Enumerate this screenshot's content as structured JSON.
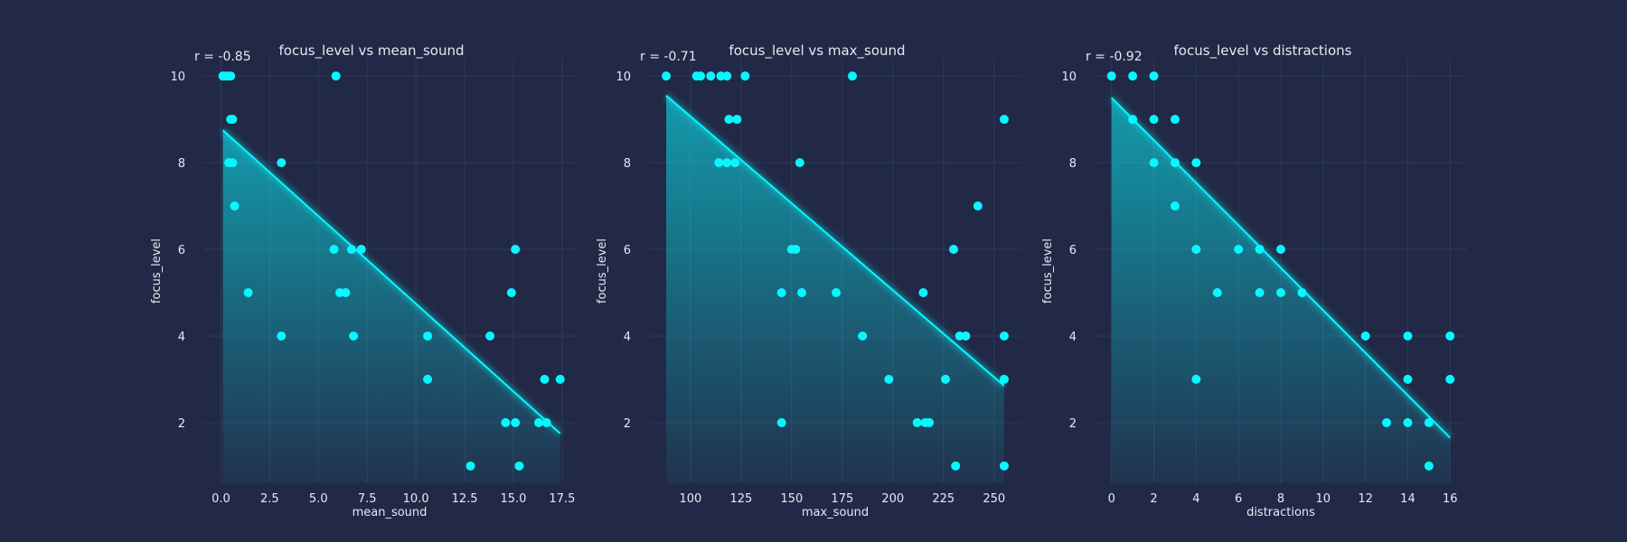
{
  "colors": {
    "background": "#212946",
    "point": "#08f7fe",
    "line": "#08f7fe",
    "grid": "#2d3a5c",
    "text": "#e6e9f2"
  },
  "chart_data": [
    {
      "type": "scatter",
      "title": "focus_level vs mean_sound",
      "annotation": "r = -0.85",
      "xlabel": "mean_sound",
      "ylabel": "focus_level",
      "grid": true,
      "xlim": [
        -0.9,
        18.2
      ],
      "ylim": [
        0.6,
        10.4
      ],
      "xticks": [
        0,
        2.5,
        5,
        7.5,
        10,
        12.5,
        15,
        17.5
      ],
      "xticklabels": [
        "0.0",
        "2.5",
        "5.0",
        "7.5",
        "10.0",
        "12.5",
        "15.0",
        "17.5"
      ],
      "yticks": [
        2,
        4,
        6,
        8,
        10
      ],
      "yticklabels": [
        "2",
        "4",
        "6",
        "8",
        "10"
      ],
      "points": [
        {
          "x": 0.1,
          "y": 10
        },
        {
          "x": 0.3,
          "y": 10
        },
        {
          "x": 0.5,
          "y": 10
        },
        {
          "x": 0.5,
          "y": 9
        },
        {
          "x": 0.6,
          "y": 9
        },
        {
          "x": 0.4,
          "y": 8
        },
        {
          "x": 0.6,
          "y": 8
        },
        {
          "x": 0.7,
          "y": 7
        },
        {
          "x": 1.4,
          "y": 5
        },
        {
          "x": 3.1,
          "y": 8
        },
        {
          "x": 3.1,
          "y": 4
        },
        {
          "x": 5.8,
          "y": 6
        },
        {
          "x": 5.9,
          "y": 10
        },
        {
          "x": 6.1,
          "y": 5
        },
        {
          "x": 6.4,
          "y": 5
        },
        {
          "x": 6.7,
          "y": 6
        },
        {
          "x": 6.8,
          "y": 4
        },
        {
          "x": 7.2,
          "y": 6
        },
        {
          "x": 10.6,
          "y": 4
        },
        {
          "x": 10.6,
          "y": 3
        },
        {
          "x": 12.8,
          "y": 1
        },
        {
          "x": 13.8,
          "y": 4
        },
        {
          "x": 14.6,
          "y": 2
        },
        {
          "x": 14.9,
          "y": 5
        },
        {
          "x": 15.1,
          "y": 6
        },
        {
          "x": 15.1,
          "y": 2
        },
        {
          "x": 15.3,
          "y": 1
        },
        {
          "x": 16.3,
          "y": 2
        },
        {
          "x": 16.6,
          "y": 3
        },
        {
          "x": 16.7,
          "y": 2
        },
        {
          "x": 17.4,
          "y": 3
        }
      ],
      "fit": {
        "x": [
          0.1,
          17.4
        ],
        "y": [
          8.75,
          1.75
        ]
      }
    },
    {
      "type": "scatter",
      "title": "focus_level vs max_sound",
      "annotation": "r = -0.71",
      "xlabel": "max_sound",
      "ylabel": "focus_level",
      "grid": true,
      "xlim": [
        79.5,
        263.5
      ],
      "ylim": [
        0.6,
        10.4
      ],
      "xticks": [
        100,
        125,
        150,
        175,
        200,
        225,
        250
      ],
      "xticklabels": [
        "100",
        "125",
        "150",
        "175",
        "200",
        "225",
        "250"
      ],
      "yticks": [
        2,
        4,
        6,
        8,
        10
      ],
      "yticklabels": [
        "2",
        "4",
        "6",
        "8",
        "10"
      ],
      "points": [
        {
          "x": 88,
          "y": 10
        },
        {
          "x": 103,
          "y": 10
        },
        {
          "x": 105,
          "y": 10
        },
        {
          "x": 110,
          "y": 10
        },
        {
          "x": 115,
          "y": 10
        },
        {
          "x": 118,
          "y": 10
        },
        {
          "x": 127,
          "y": 10
        },
        {
          "x": 180,
          "y": 10
        },
        {
          "x": 119,
          "y": 9
        },
        {
          "x": 123,
          "y": 9
        },
        {
          "x": 114,
          "y": 8
        },
        {
          "x": 118,
          "y": 8
        },
        {
          "x": 122,
          "y": 8
        },
        {
          "x": 154,
          "y": 8
        },
        {
          "x": 150,
          "y": 6
        },
        {
          "x": 152,
          "y": 6
        },
        {
          "x": 145,
          "y": 5
        },
        {
          "x": 155,
          "y": 5
        },
        {
          "x": 172,
          "y": 5
        },
        {
          "x": 185,
          "y": 4
        },
        {
          "x": 145,
          "y": 2
        },
        {
          "x": 198,
          "y": 3
        },
        {
          "x": 212,
          "y": 2
        },
        {
          "x": 216,
          "y": 2
        },
        {
          "x": 218,
          "y": 2
        },
        {
          "x": 215,
          "y": 5
        },
        {
          "x": 226,
          "y": 3
        },
        {
          "x": 230,
          "y": 6
        },
        {
          "x": 231,
          "y": 1
        },
        {
          "x": 233,
          "y": 4
        },
        {
          "x": 236,
          "y": 4
        },
        {
          "x": 242,
          "y": 7
        },
        {
          "x": 255,
          "y": 9
        },
        {
          "x": 255,
          "y": 4
        },
        {
          "x": 255,
          "y": 3
        },
        {
          "x": 255,
          "y": 1
        }
      ],
      "fit": {
        "x": [
          88,
          255
        ],
        "y": [
          9.55,
          2.85
        ]
      }
    },
    {
      "type": "scatter",
      "title": "focus_level vs distractions",
      "annotation": "r = -0.92",
      "xlabel": "distractions",
      "ylabel": "focus_level",
      "grid": true,
      "xlim": [
        -0.8,
        16.8
      ],
      "ylim": [
        0.6,
        10.4
      ],
      "xticks": [
        0,
        2,
        4,
        6,
        8,
        10,
        12,
        14,
        16
      ],
      "xticklabels": [
        "0",
        "2",
        "4",
        "6",
        "8",
        "10",
        "12",
        "14",
        "16"
      ],
      "yticks": [
        2,
        4,
        6,
        8,
        10
      ],
      "yticklabels": [
        "2",
        "4",
        "6",
        "8",
        "10"
      ],
      "points": [
        {
          "x": 0,
          "y": 10
        },
        {
          "x": 1,
          "y": 10
        },
        {
          "x": 2,
          "y": 10
        },
        {
          "x": 1,
          "y": 9
        },
        {
          "x": 2,
          "y": 9
        },
        {
          "x": 3,
          "y": 9
        },
        {
          "x": 2,
          "y": 8
        },
        {
          "x": 3,
          "y": 8
        },
        {
          "x": 4,
          "y": 8
        },
        {
          "x": 3,
          "y": 7
        },
        {
          "x": 4,
          "y": 6
        },
        {
          "x": 6,
          "y": 6
        },
        {
          "x": 7,
          "y": 6
        },
        {
          "x": 8,
          "y": 6
        },
        {
          "x": 5,
          "y": 5
        },
        {
          "x": 7,
          "y": 5
        },
        {
          "x": 8,
          "y": 5
        },
        {
          "x": 9,
          "y": 5
        },
        {
          "x": 4,
          "y": 3
        },
        {
          "x": 12,
          "y": 4
        },
        {
          "x": 14,
          "y": 4
        },
        {
          "x": 16,
          "y": 4
        },
        {
          "x": 13,
          "y": 2
        },
        {
          "x": 14,
          "y": 3
        },
        {
          "x": 14,
          "y": 2
        },
        {
          "x": 15,
          "y": 2
        },
        {
          "x": 15,
          "y": 1
        },
        {
          "x": 16,
          "y": 3
        }
      ],
      "fit": {
        "x": [
          0,
          16
        ],
        "y": [
          9.5,
          1.65
        ]
      }
    }
  ]
}
